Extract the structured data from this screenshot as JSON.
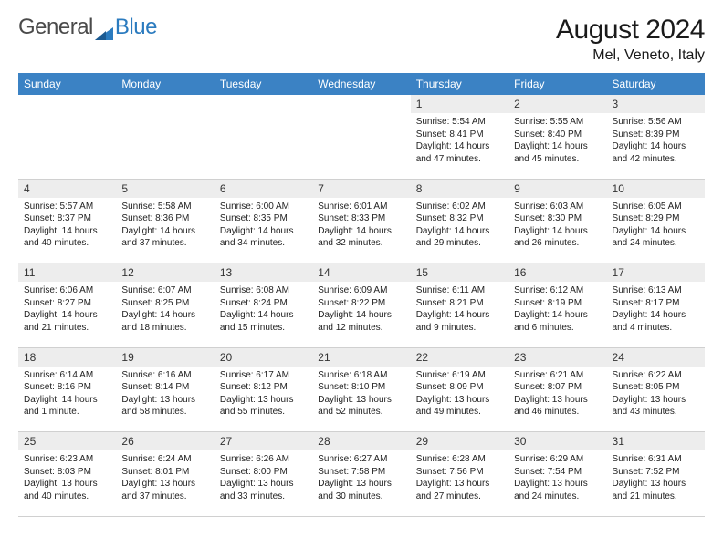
{
  "logo": {
    "text1": "General",
    "text2": "Blue"
  },
  "title": "August 2024",
  "location": "Mel, Veneto, Italy",
  "weekdays": [
    "Sunday",
    "Monday",
    "Tuesday",
    "Wednesday",
    "Thursday",
    "Friday",
    "Saturday"
  ],
  "colors": {
    "header_bg": "#3b82c4",
    "header_fg": "#ffffff",
    "daynum_bg": "#ededed",
    "border": "#d0d0d0",
    "body_bg": "#ffffff",
    "text": "#1a1a1a",
    "logo_blue": "#2b7bbf"
  },
  "typography": {
    "title_size_pt": 22,
    "location_size_pt": 12,
    "weekday_size_pt": 9,
    "daynum_size_pt": 9,
    "cell_size_pt": 7.5
  },
  "layout": {
    "columns": 7,
    "rows": 5,
    "first_day_col": 4
  },
  "days": [
    {
      "n": 1,
      "rise": "5:54 AM",
      "set": "8:41 PM",
      "dl": "14 hours and 47 minutes."
    },
    {
      "n": 2,
      "rise": "5:55 AM",
      "set": "8:40 PM",
      "dl": "14 hours and 45 minutes."
    },
    {
      "n": 3,
      "rise": "5:56 AM",
      "set": "8:39 PM",
      "dl": "14 hours and 42 minutes."
    },
    {
      "n": 4,
      "rise": "5:57 AM",
      "set": "8:37 PM",
      "dl": "14 hours and 40 minutes."
    },
    {
      "n": 5,
      "rise": "5:58 AM",
      "set": "8:36 PM",
      "dl": "14 hours and 37 minutes."
    },
    {
      "n": 6,
      "rise": "6:00 AM",
      "set": "8:35 PM",
      "dl": "14 hours and 34 minutes."
    },
    {
      "n": 7,
      "rise": "6:01 AM",
      "set": "8:33 PM",
      "dl": "14 hours and 32 minutes."
    },
    {
      "n": 8,
      "rise": "6:02 AM",
      "set": "8:32 PM",
      "dl": "14 hours and 29 minutes."
    },
    {
      "n": 9,
      "rise": "6:03 AM",
      "set": "8:30 PM",
      "dl": "14 hours and 26 minutes."
    },
    {
      "n": 10,
      "rise": "6:05 AM",
      "set": "8:29 PM",
      "dl": "14 hours and 24 minutes."
    },
    {
      "n": 11,
      "rise": "6:06 AM",
      "set": "8:27 PM",
      "dl": "14 hours and 21 minutes."
    },
    {
      "n": 12,
      "rise": "6:07 AM",
      "set": "8:25 PM",
      "dl": "14 hours and 18 minutes."
    },
    {
      "n": 13,
      "rise": "6:08 AM",
      "set": "8:24 PM",
      "dl": "14 hours and 15 minutes."
    },
    {
      "n": 14,
      "rise": "6:09 AM",
      "set": "8:22 PM",
      "dl": "14 hours and 12 minutes."
    },
    {
      "n": 15,
      "rise": "6:11 AM",
      "set": "8:21 PM",
      "dl": "14 hours and 9 minutes."
    },
    {
      "n": 16,
      "rise": "6:12 AM",
      "set": "8:19 PM",
      "dl": "14 hours and 6 minutes."
    },
    {
      "n": 17,
      "rise": "6:13 AM",
      "set": "8:17 PM",
      "dl": "14 hours and 4 minutes."
    },
    {
      "n": 18,
      "rise": "6:14 AM",
      "set": "8:16 PM",
      "dl": "14 hours and 1 minute."
    },
    {
      "n": 19,
      "rise": "6:16 AM",
      "set": "8:14 PM",
      "dl": "13 hours and 58 minutes."
    },
    {
      "n": 20,
      "rise": "6:17 AM",
      "set": "8:12 PM",
      "dl": "13 hours and 55 minutes."
    },
    {
      "n": 21,
      "rise": "6:18 AM",
      "set": "8:10 PM",
      "dl": "13 hours and 52 minutes."
    },
    {
      "n": 22,
      "rise": "6:19 AM",
      "set": "8:09 PM",
      "dl": "13 hours and 49 minutes."
    },
    {
      "n": 23,
      "rise": "6:21 AM",
      "set": "8:07 PM",
      "dl": "13 hours and 46 minutes."
    },
    {
      "n": 24,
      "rise": "6:22 AM",
      "set": "8:05 PM",
      "dl": "13 hours and 43 minutes."
    },
    {
      "n": 25,
      "rise": "6:23 AM",
      "set": "8:03 PM",
      "dl": "13 hours and 40 minutes."
    },
    {
      "n": 26,
      "rise": "6:24 AM",
      "set": "8:01 PM",
      "dl": "13 hours and 37 minutes."
    },
    {
      "n": 27,
      "rise": "6:26 AM",
      "set": "8:00 PM",
      "dl": "13 hours and 33 minutes."
    },
    {
      "n": 28,
      "rise": "6:27 AM",
      "set": "7:58 PM",
      "dl": "13 hours and 30 minutes."
    },
    {
      "n": 29,
      "rise": "6:28 AM",
      "set": "7:56 PM",
      "dl": "13 hours and 27 minutes."
    },
    {
      "n": 30,
      "rise": "6:29 AM",
      "set": "7:54 PM",
      "dl": "13 hours and 24 minutes."
    },
    {
      "n": 31,
      "rise": "6:31 AM",
      "set": "7:52 PM",
      "dl": "13 hours and 21 minutes."
    }
  ],
  "labels": {
    "sunrise": "Sunrise:",
    "sunset": "Sunset:",
    "daylight": "Daylight:"
  }
}
